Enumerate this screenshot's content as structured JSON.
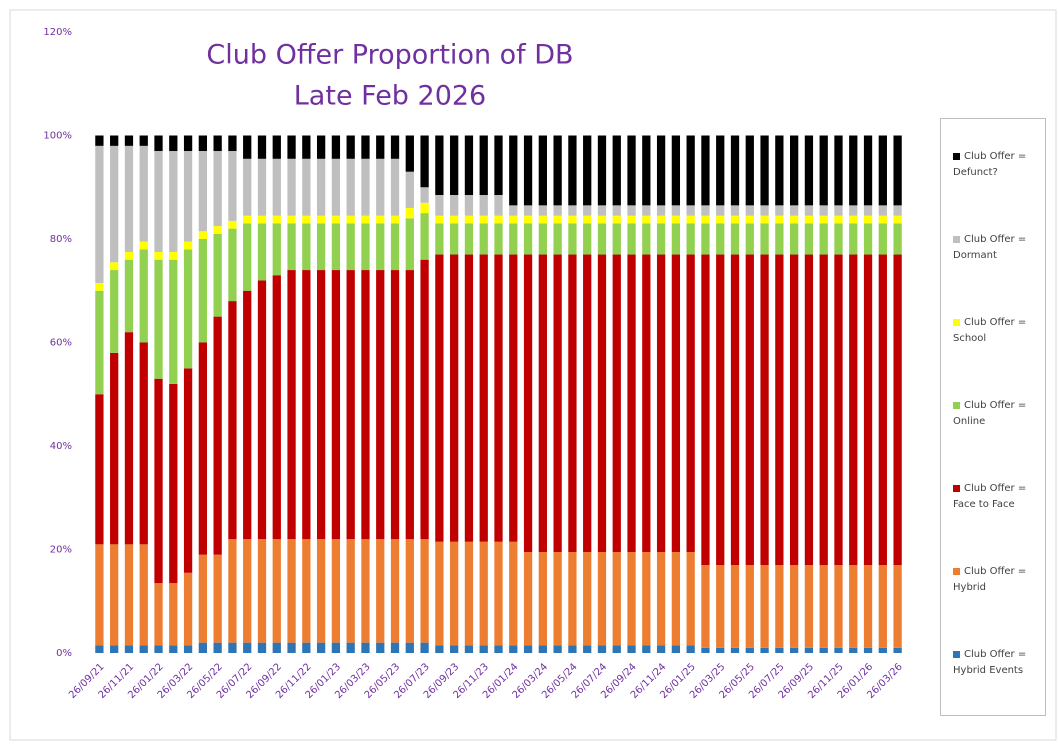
{
  "chart_data": {
    "type": "stacked_bar",
    "title": "Club Offer Proportion of DB",
    "subtitle": "Late Feb 2026",
    "categories": [
      "26/09/21",
      null,
      "26/11/21",
      null,
      "26/01/22",
      null,
      "26/03/22",
      null,
      "26/05/22",
      null,
      "26/07/22",
      null,
      "26/09/22",
      null,
      "26/11/22",
      null,
      "26/01/23",
      null,
      "26/03/23",
      null,
      "26/05/23",
      null,
      "26/07/23",
      null,
      "26/09/23",
      null,
      "26/11/23",
      null,
      "26/01/24",
      null,
      "26/03/24",
      null,
      "26/05/24",
      null,
      "26/07/24",
      null,
      "26/09/24",
      null,
      "26/11/24",
      null,
      "26/01/25",
      null,
      "26/03/25",
      null,
      "26/05/25",
      null,
      "26/07/25",
      null,
      "26/09/25",
      null,
      "26/11/25",
      null,
      "26/01/26",
      null,
      "26/03/26"
    ],
    "series": [
      {
        "name": "Club Offer = Hybrid Events",
        "color": "#2e75b6",
        "values": [
          1.5,
          1.5,
          1.5,
          1.5,
          1.5,
          1.5,
          1.5,
          2,
          2,
          2,
          2,
          2,
          2,
          2,
          2,
          2,
          2,
          2,
          2,
          2,
          2,
          2,
          2,
          1.5,
          1.5,
          1.5,
          1.5,
          1.5,
          1.5,
          1.5,
          1.5,
          1.5,
          1.5,
          1.5,
          1.5,
          1.5,
          1.5,
          1.5,
          1.5,
          1.5,
          1.5,
          1,
          1,
          1,
          1,
          1,
          1,
          1,
          1,
          1,
          1,
          1,
          1,
          1,
          1
        ]
      },
      {
        "name": "Club Offer = Hybrid",
        "color": "#ed7d31",
        "values": [
          19.5,
          19.5,
          19.5,
          19.5,
          12,
          12,
          14,
          17,
          17,
          20,
          20,
          20,
          20,
          20,
          20,
          20,
          20,
          20,
          20,
          20,
          20,
          20,
          20,
          20,
          20,
          20,
          20,
          20,
          20,
          18,
          18,
          18,
          18,
          18,
          18,
          18,
          18,
          18,
          18,
          18,
          18,
          16,
          16,
          16,
          16,
          16,
          16,
          16,
          16,
          16,
          16,
          16,
          16,
          16,
          16
        ]
      },
      {
        "name": "Club Offer = Face to Face",
        "color": "#c00000",
        "values": [
          29,
          37,
          41,
          39,
          39.5,
          38.5,
          39.5,
          41,
          46,
          46,
          48,
          50,
          51,
          52,
          52,
          52,
          52,
          52,
          52,
          52,
          52,
          52,
          54,
          55.5,
          55.5,
          55.5,
          55.5,
          55.5,
          55.5,
          57.5,
          57.5,
          57.5,
          57.5,
          57.5,
          57.5,
          57.5,
          57.5,
          57.5,
          57.5,
          57.5,
          57.5,
          60,
          60,
          60,
          60,
          60,
          60,
          60,
          60,
          60,
          60,
          60,
          60,
          60,
          60
        ]
      },
      {
        "name": "Club Offer = Online",
        "color": "#92d050",
        "values": [
          20,
          16,
          14,
          18,
          23,
          24,
          23,
          20,
          16,
          14,
          13,
          11,
          10,
          9,
          9,
          9,
          9,
          9,
          9,
          9,
          9,
          10,
          9,
          6,
          6,
          6,
          6,
          6,
          6,
          6,
          6,
          6,
          6,
          6,
          6,
          6,
          6,
          6,
          6,
          6,
          6,
          6,
          6,
          6,
          6,
          6,
          6,
          6,
          6,
          6,
          6,
          6,
          6,
          6,
          6
        ]
      },
      {
        "name": "Club Offer = School",
        "color": "#ffff00",
        "values": [
          1.5,
          1.5,
          1.5,
          1.5,
          1.5,
          1.5,
          1.5,
          1.5,
          1.5,
          1.5,
          1.5,
          1.5,
          1.5,
          1.5,
          1.5,
          1.5,
          1.5,
          1.5,
          1.5,
          1.5,
          1.5,
          2,
          2,
          1.5,
          1.5,
          1.5,
          1.5,
          1.5,
          1.5,
          1.5,
          1.5,
          1.5,
          1.5,
          1.5,
          1.5,
          1.5,
          1.5,
          1.5,
          1.5,
          1.5,
          1.5,
          1.5,
          1.5,
          1.5,
          1.5,
          1.5,
          1.5,
          1.5,
          1.5,
          1.5,
          1.5,
          1.5,
          1.5,
          1.5,
          1.5
        ]
      },
      {
        "name": "Club Offer = Dormant",
        "color": "#bfbfbf",
        "values": [
          26.5,
          22.5,
          20.5,
          18.5,
          19.5,
          19.5,
          17.5,
          15.5,
          14.5,
          13.5,
          11,
          11,
          11,
          11,
          11,
          11,
          11,
          11,
          11,
          11,
          11,
          7,
          3,
          4,
          4,
          4,
          4,
          4,
          2,
          2,
          2,
          2,
          2,
          2,
          2,
          2,
          2,
          2,
          2,
          2,
          2,
          2,
          2,
          2,
          2,
          2,
          2,
          2,
          2,
          2,
          2,
          2,
          2,
          2,
          2
        ]
      },
      {
        "name": "Club Offer = Defunct?",
        "color": "#000000",
        "values": [
          2,
          2,
          2,
          2,
          3,
          3,
          3,
          3,
          3,
          3,
          4.5,
          4.5,
          4.5,
          4.5,
          4.5,
          4.5,
          4.5,
          4.5,
          4.5,
          4.5,
          4.5,
          7,
          10,
          11.5,
          11.5,
          11.5,
          11.5,
          11.5,
          13.5,
          13.5,
          13.5,
          13.5,
          13.5,
          13.5,
          13.5,
          13.5,
          13.5,
          13.5,
          13.5,
          13.5,
          13.5,
          13.5,
          13.5,
          13.5,
          13.5,
          13.5,
          13.5,
          13.5,
          13.5,
          13.5,
          13.5,
          13.5,
          13.5,
          13.5,
          13.5
        ]
      }
    ],
    "ylim": [
      0,
      120
    ],
    "yticks": [
      {
        "value": 0,
        "label": "0%"
      },
      {
        "value": 20,
        "label": "20%"
      },
      {
        "value": 40,
        "label": "40%"
      },
      {
        "value": 60,
        "label": "60%"
      },
      {
        "value": 80,
        "label": "80%"
      },
      {
        "value": 100,
        "label": "100%"
      },
      {
        "value": 120,
        "label": "120%"
      }
    ],
    "grid": false,
    "legend": "right"
  }
}
